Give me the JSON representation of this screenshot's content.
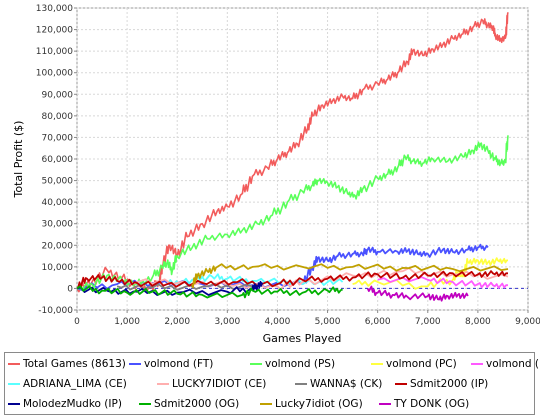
{
  "chart_data": {
    "type": "line",
    "xlabel": "Games Played",
    "ylabel": "Total Profit ($)",
    "xlim": [
      0,
      9000
    ],
    "ylim": [
      -10000,
      130000
    ],
    "x_ticks": [
      "0",
      "1,000",
      "2,000",
      "3,000",
      "4,000",
      "5,000",
      "6,000",
      "7,000",
      "8,000",
      "9,000"
    ],
    "y_ticks": [
      "-10,000",
      "0",
      "10,000",
      "20,000",
      "30,000",
      "40,000",
      "50,000",
      "60,000",
      "70,000",
      "80,000",
      "90,000",
      "100,000",
      "110,000",
      "120,000",
      "130,000"
    ],
    "grid": true,
    "legend_position": "bottom",
    "series": [
      {
        "name": "Total Games (8613)",
        "color": "#f25c5c",
        "points": [
          [
            0,
            0
          ],
          [
            300,
            3000
          ],
          [
            600,
            8500
          ],
          [
            900,
            5000
          ],
          [
            1200,
            1000
          ],
          [
            1500,
            0
          ],
          [
            1650,
            4000
          ],
          [
            1700,
            10000
          ],
          [
            1850,
            20000
          ],
          [
            2000,
            15000
          ],
          [
            2200,
            24000
          ],
          [
            2500,
            30000
          ],
          [
            2800,
            36000
          ],
          [
            3000,
            38000
          ],
          [
            3300,
            44000
          ],
          [
            3500,
            52000
          ],
          [
            3800,
            56000
          ],
          [
            4000,
            60000
          ],
          [
            4200,
            63000
          ],
          [
            4400,
            67000
          ],
          [
            4600,
            74000
          ],
          [
            4700,
            80000
          ],
          [
            4900,
            85000
          ],
          [
            5100,
            87000
          ],
          [
            5300,
            89000
          ],
          [
            5500,
            88000
          ],
          [
            5700,
            92000
          ],
          [
            6000,
            95000
          ],
          [
            6200,
            97000
          ],
          [
            6400,
            100000
          ],
          [
            6600,
            105000
          ],
          [
            6700,
            110000
          ],
          [
            6900,
            108000
          ],
          [
            7100,
            111000
          ],
          [
            7300,
            113000
          ],
          [
            7500,
            116000
          ],
          [
            7700,
            118000
          ],
          [
            7900,
            121000
          ],
          [
            8100,
            124000
          ],
          [
            8200,
            122000
          ],
          [
            8300,
            121000
          ],
          [
            8350,
            117000
          ],
          [
            8450,
            115000
          ],
          [
            8550,
            116000
          ],
          [
            8600,
            128000
          ]
        ]
      },
      {
        "name": "volmond (FT)",
        "color": "#4a52ff",
        "points": [
          [
            0,
            0
          ],
          [
            800,
            2000
          ],
          [
            1500,
            2500
          ],
          [
            2500,
            2000
          ],
          [
            3500,
            1500
          ],
          [
            4500,
            2000
          ],
          [
            4700,
            10000
          ],
          [
            4800,
            14000
          ],
          [
            5000,
            13000
          ],
          [
            5200,
            15000
          ],
          [
            5500,
            16000
          ],
          [
            5700,
            16000
          ],
          [
            5800,
            18000
          ],
          [
            6000,
            17000
          ],
          [
            6400,
            17000
          ],
          [
            6600,
            17500
          ],
          [
            6800,
            16000
          ],
          [
            7000,
            16000
          ],
          [
            7300,
            18000
          ],
          [
            7500,
            17000
          ],
          [
            7800,
            18000
          ],
          [
            8000,
            19000
          ],
          [
            8200,
            19000
          ]
        ]
      },
      {
        "name": "volmond (PS)",
        "color": "#5aff5a",
        "points": [
          [
            0,
            0
          ],
          [
            300,
            2000
          ],
          [
            600,
            6000
          ],
          [
            900,
            4000
          ],
          [
            1200,
            2000
          ],
          [
            1500,
            5000
          ],
          [
            1700,
            10000
          ],
          [
            1800,
            12000
          ],
          [
            1900,
            8000
          ],
          [
            2000,
            15000
          ],
          [
            2300,
            19000
          ],
          [
            2600,
            23000
          ],
          [
            3000,
            25000
          ],
          [
            3300,
            27000
          ],
          [
            3600,
            30000
          ],
          [
            3900,
            34000
          ],
          [
            4200,
            40000
          ],
          [
            4500,
            45000
          ],
          [
            4700,
            48000
          ],
          [
            4800,
            50000
          ],
          [
            5000,
            49000
          ],
          [
            5200,
            47000
          ],
          [
            5400,
            44000
          ],
          [
            5550,
            43000
          ],
          [
            5700,
            46000
          ],
          [
            6000,
            51000
          ],
          [
            6200,
            53000
          ],
          [
            6400,
            56000
          ],
          [
            6550,
            61000
          ],
          [
            6700,
            59000
          ],
          [
            6900,
            58000
          ],
          [
            7100,
            60000
          ],
          [
            7400,
            59000
          ],
          [
            7700,
            61000
          ],
          [
            7900,
            64000
          ],
          [
            8050,
            67000
          ],
          [
            8200,
            64000
          ],
          [
            8350,
            60000
          ],
          [
            8450,
            58000
          ],
          [
            8550,
            59000
          ],
          [
            8600,
            71000
          ]
        ]
      },
      {
        "name": "volmond (PC)",
        "color": "#ffff40",
        "points": [
          [
            5500,
            2000
          ],
          [
            6000,
            3000
          ],
          [
            7000,
            1000
          ],
          [
            7500,
            4000
          ],
          [
            7600,
            7000
          ],
          [
            7700,
            6000
          ],
          [
            7800,
            12000
          ],
          [
            8000,
            13000
          ],
          [
            8200,
            12000
          ],
          [
            8400,
            13000
          ],
          [
            8600,
            13000
          ]
        ]
      },
      {
        "name": "volmond (MI)",
        "color": "#ff5aff",
        "points": [
          [
            6000,
            4000
          ],
          [
            7000,
            4000
          ],
          [
            7500,
            3000
          ],
          [
            8000,
            2000
          ],
          [
            8300,
            1500
          ],
          [
            8600,
            1500
          ]
        ]
      },
      {
        "name": "ADRIANA_LIMA (CE)",
        "color": "#5affff",
        "points": [
          [
            1800,
            2000
          ],
          [
            2300,
            4000
          ],
          [
            2700,
            5500
          ],
          [
            3000,
            4500
          ],
          [
            3500,
            3500
          ],
          [
            4200,
            3000
          ],
          [
            4800,
            2500
          ],
          [
            5300,
            3000
          ]
        ]
      },
      {
        "name": "LUCKY7IDIOT (CE)",
        "color": "#ffafaf",
        "points": [
          [
            1000,
            3500
          ],
          [
            2000,
            2500
          ],
          [
            3000,
            1500
          ],
          [
            4000,
            1000
          ],
          [
            4500,
            3000
          ],
          [
            5500,
            6000
          ],
          [
            6500,
            8000
          ],
          [
            7500,
            6500
          ],
          [
            8600,
            5500
          ]
        ]
      },
      {
        "name": "WANNA$ (CK)",
        "color": "#808080",
        "points": [
          [
            800,
            1000
          ],
          [
            1500,
            500
          ],
          [
            2500,
            800
          ],
          [
            3500,
            1000
          ]
        ]
      },
      {
        "name": "Sdmit2000 (IP)",
        "color": "#c00000",
        "points": [
          [
            0,
            0
          ],
          [
            200,
            4500
          ],
          [
            500,
            5000
          ],
          [
            800,
            3500
          ],
          [
            1200,
            2500
          ],
          [
            1800,
            2000
          ],
          [
            2500,
            2500
          ],
          [
            3200,
            3000
          ],
          [
            4000,
            2000
          ],
          [
            4500,
            4000
          ],
          [
            5000,
            4500
          ],
          [
            5500,
            5000
          ],
          [
            6000,
            6500
          ],
          [
            6500,
            5000
          ],
          [
            7000,
            6000
          ],
          [
            7500,
            7000
          ],
          [
            8000,
            6500
          ],
          [
            8300,
            7000
          ],
          [
            8600,
            7000
          ]
        ]
      },
      {
        "name": "MolodezMudko (IP)",
        "color": "#000090",
        "points": [
          [
            0,
            0
          ],
          [
            600,
            -1000
          ],
          [
            1200,
            -1500
          ],
          [
            2000,
            -2000
          ],
          [
            3000,
            -1500
          ],
          [
            3500,
            0
          ],
          [
            3600,
            1000
          ],
          [
            3700,
            2000
          ]
        ]
      },
      {
        "name": "Sdmit2000 (OG)",
        "color": "#00b000",
        "points": [
          [
            0,
            0
          ],
          [
            500,
            -1000
          ],
          [
            1000,
            -2000
          ],
          [
            1500,
            -1500
          ],
          [
            2000,
            -2500
          ],
          [
            2500,
            -3000
          ],
          [
            3300,
            -3000
          ],
          [
            3500,
            -1000
          ],
          [
            4000,
            -1500
          ],
          [
            4500,
            -2000
          ],
          [
            5000,
            -1000
          ],
          [
            5300,
            -500
          ]
        ]
      },
      {
        "name": "Lucky7idiot (OG)",
        "color": "#c0a000",
        "points": [
          [
            2300,
            2000
          ],
          [
            2400,
            6000
          ],
          [
            2600,
            8000
          ],
          [
            2800,
            10000
          ],
          [
            3500,
            10000
          ],
          [
            4500,
            10000
          ],
          [
            5500,
            10000
          ],
          [
            6500,
            9500
          ],
          [
            7500,
            9000
          ],
          [
            8600,
            9000
          ]
        ]
      },
      {
        "name": "TY DONK (OG)",
        "color": "#c000c0",
        "points": [
          [
            5800,
            0
          ],
          [
            6000,
            -2000
          ],
          [
            6300,
            -3000
          ],
          [
            6600,
            -4000
          ],
          [
            7000,
            -3500
          ],
          [
            7200,
            -5000
          ],
          [
            7400,
            -3500
          ],
          [
            7600,
            -3000
          ],
          [
            7800,
            -3500
          ]
        ]
      }
    ]
  }
}
